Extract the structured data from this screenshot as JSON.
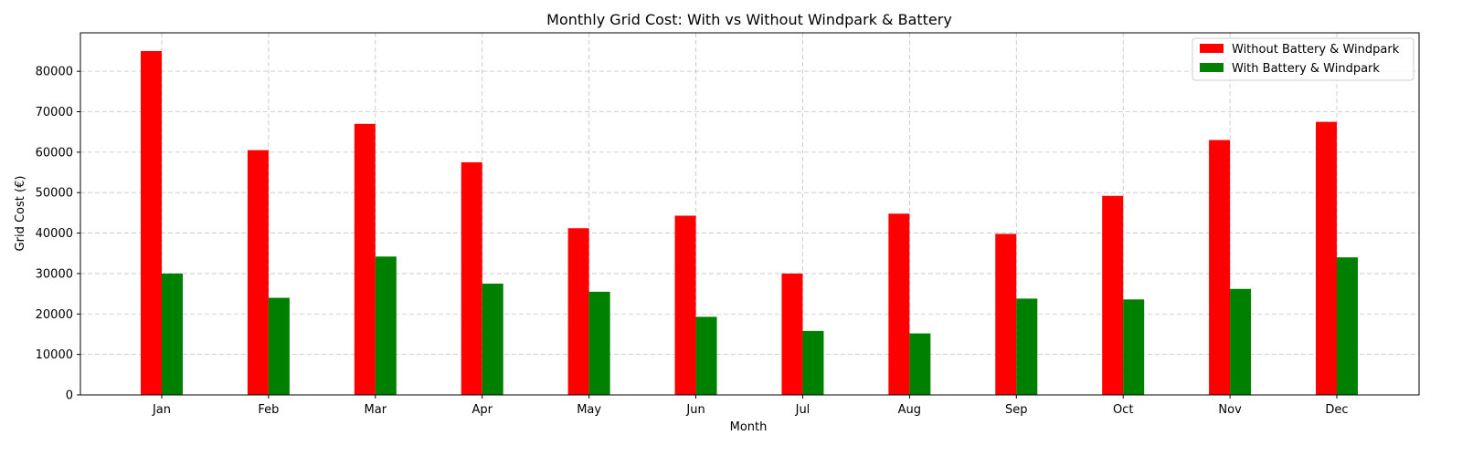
{
  "chart_data": {
    "type": "bar",
    "title": "Monthly Grid Cost: With vs Without Windpark & Battery",
    "xlabel": "Month",
    "ylabel": "Grid Cost (€)",
    "categories": [
      "Jan",
      "Feb",
      "Mar",
      "Apr",
      "May",
      "Jun",
      "Jul",
      "Aug",
      "Sep",
      "Oct",
      "Nov",
      "Dec"
    ],
    "series": [
      {
        "name": "Without Battery & Windpark",
        "color": "#ff0000",
        "values": [
          85000,
          60500,
          67000,
          57500,
          41200,
          44300,
          30000,
          44800,
          39800,
          49200,
          63000,
          67500
        ]
      },
      {
        "name": "With Battery & Windpark",
        "color": "#008000",
        "values": [
          30000,
          24000,
          34200,
          27500,
          25500,
          19300,
          15800,
          15200,
          23800,
          23600,
          26200,
          34000
        ]
      }
    ],
    "ylim": [
      0,
      89500
    ],
    "yticks": [
      "0",
      "10000",
      "20000",
      "30000",
      "40000",
      "50000",
      "60000",
      "70000",
      "80000"
    ],
    "grid": true,
    "legend_position": "top-right"
  }
}
